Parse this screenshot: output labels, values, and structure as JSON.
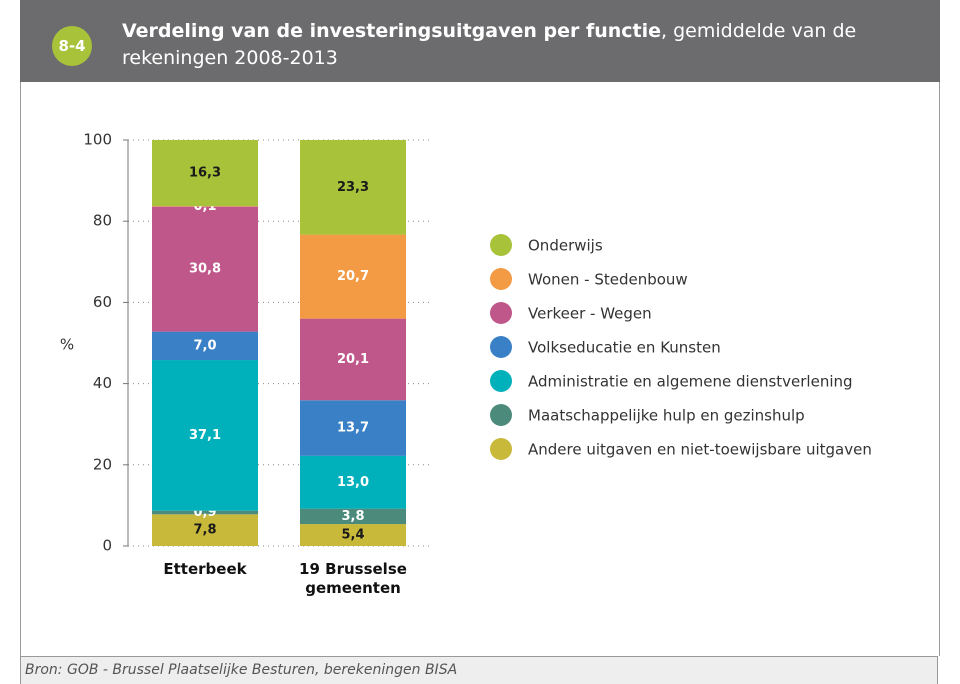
{
  "badge": "8-4",
  "chart_data": {
    "type": "stacked_bar",
    "title": "Verdeling van de investeringsuitgaven per functie",
    "subtitle": ", gemiddelde van de rekeningen 2008-2013",
    "y_label": "%",
    "categories": [
      "Etterbeek",
      "19 Brusselse gemeenten"
    ],
    "ylim": [
      0,
      100
    ],
    "yticks": [
      0,
      20,
      40,
      60,
      80,
      100
    ],
    "grid": true,
    "legend": "right",
    "series": [
      {
        "name": "Onderwijs",
        "color": "#a8c23a",
        "label_color": "#1a1a1a",
        "values": [
          16.3,
          23.3
        ],
        "value_labels": [
          "16,3",
          "23,3"
        ]
      },
      {
        "name": "Wonen - Stedenbouw",
        "color": "#f39a45",
        "label_color": "#ffffff",
        "values": [
          0.1,
          20.7
        ],
        "value_labels": [
          "0,1",
          "20,7"
        ]
      },
      {
        "name": "Verkeer - Wegen",
        "color": "#c0578a",
        "label_color": "#ffffff",
        "values": [
          30.8,
          20.1
        ],
        "value_labels": [
          "30,8",
          "20,1"
        ]
      },
      {
        "name": "Volkseducatie en Kunsten",
        "color": "#3a80c6",
        "label_color": "#ffffff",
        "values": [
          7.0,
          13.7
        ],
        "value_labels": [
          "7,0",
          "13,7"
        ]
      },
      {
        "name": "Administratie en algemene dienstverlening",
        "color": "#00b0ba",
        "label_color": "#ffffff",
        "values": [
          37.1,
          13.0
        ],
        "value_labels": [
          "37,1",
          "13,0"
        ]
      },
      {
        "name": "Maatschappelijke hulp en gezinshulp",
        "color": "#4c8b7c",
        "label_color": "#ffffff",
        "values": [
          0.9,
          3.8
        ],
        "value_labels": [
          "0,9",
          "3,8"
        ]
      },
      {
        "name": "Andere uitgaven en niet-toewijsbare uitgaven",
        "color": "#c9b93a",
        "label_color": "#1a1a1a",
        "values": [
          7.8,
          5.4
        ],
        "value_labels": [
          "7,8",
          "5,4"
        ]
      }
    ]
  },
  "source": "Bron: GOB - Brussel Plaatselijke Besturen, berekeningen BISA"
}
